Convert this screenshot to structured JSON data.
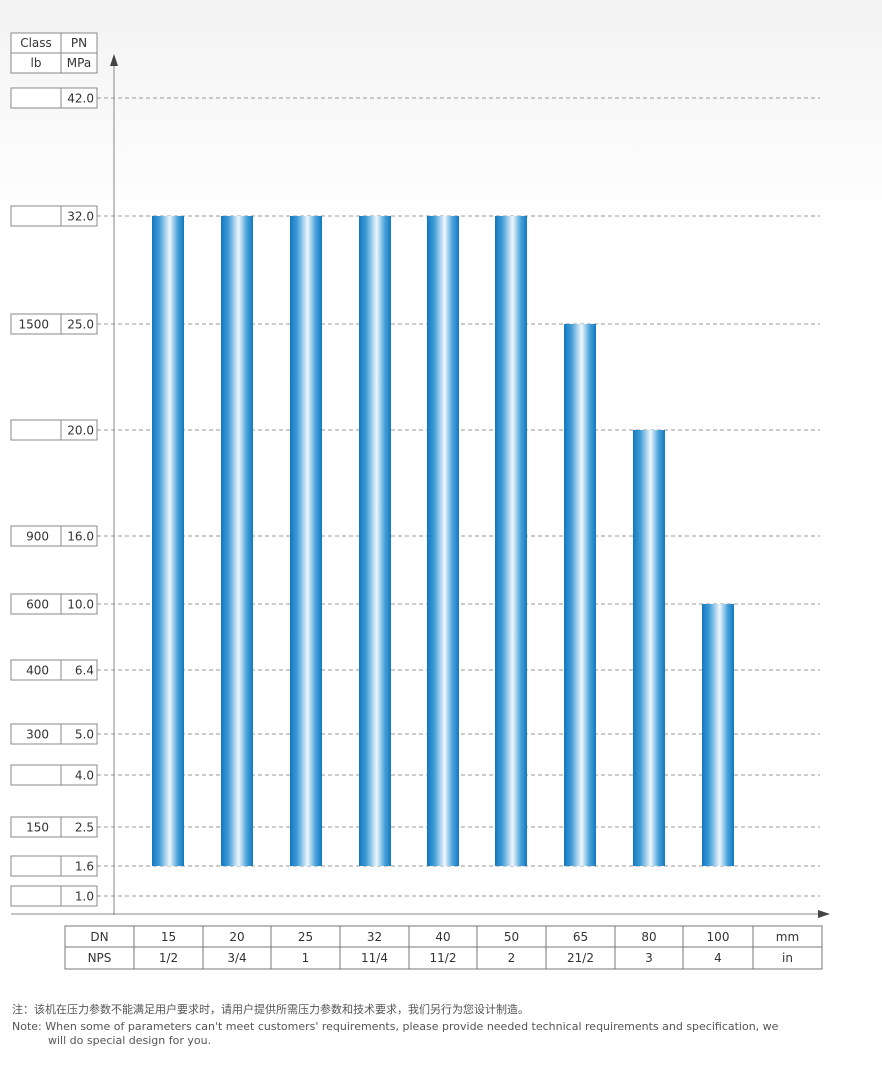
{
  "chart_data": {
    "type": "bar",
    "y_header": {
      "class_label": "Class",
      "class_unit": "lb",
      "pn_label": "PN",
      "pn_unit": "MPa"
    },
    "y_levels": [
      {
        "pn": "1.0",
        "value": 1.0,
        "class": ""
      },
      {
        "pn": "1.6",
        "value": 1.6,
        "class": ""
      },
      {
        "pn": "2.5",
        "value": 2.5,
        "class": "150"
      },
      {
        "pn": "4.0",
        "value": 4.0,
        "class": ""
      },
      {
        "pn": "5.0",
        "value": 5.0,
        "class": "300"
      },
      {
        "pn": "6.4",
        "value": 6.4,
        "class": "400"
      },
      {
        "pn": "10.0",
        "value": 10.0,
        "class": "600"
      },
      {
        "pn": "16.0",
        "value": 16.0,
        "class": "900"
      },
      {
        "pn": "20.0",
        "value": 20.0,
        "class": ""
      },
      {
        "pn": "25.0",
        "value": 25.0,
        "class": "1500"
      },
      {
        "pn": "32.0",
        "value": 32.0,
        "class": ""
      },
      {
        "pn": "42.0",
        "value": 42.0,
        "class": ""
      }
    ],
    "x_header": {
      "dn_label": "DN",
      "nps_label": "NPS",
      "dn_unit": "mm",
      "nps_unit": "in"
    },
    "categories": [
      "15",
      "20",
      "25",
      "32",
      "40",
      "50",
      "65",
      "80",
      "100"
    ],
    "nps": [
      "1/2",
      "3/4",
      "1",
      "11/4",
      "11/2",
      "2",
      "21/2",
      "3",
      "4"
    ],
    "bars": [
      {
        "from": 1.6,
        "to": 32.0
      },
      {
        "from": 1.6,
        "to": 32.0
      },
      {
        "from": 1.6,
        "to": 32.0
      },
      {
        "from": 1.6,
        "to": 32.0
      },
      {
        "from": 1.6,
        "to": 32.0
      },
      {
        "from": 1.6,
        "to": 32.0
      },
      {
        "from": 1.6,
        "to": 25.0
      },
      {
        "from": 1.6,
        "to": 20.0
      },
      {
        "from": 1.6,
        "to": 10.0
      }
    ],
    "grid": true,
    "bar_color": "#1a82c8"
  },
  "notes": {
    "zh": "注：该机在压力参数不能满足用户要求时，请用户提供所需压力参数和技术要求，我们另行为您设计制造。",
    "en_line1": "Note: When some of parameters can't meet customers' requirements, please provide needed technical requirements and specification, we",
    "en_line2": "will do special design for you."
  }
}
